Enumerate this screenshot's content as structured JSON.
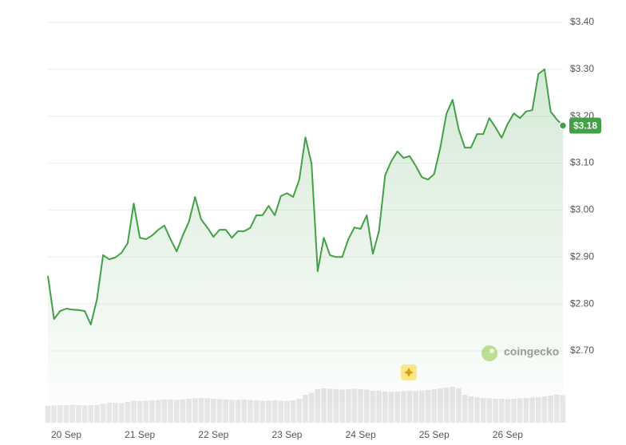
{
  "chart_data": {
    "type": "line",
    "color": "#43a047",
    "categories": [
      null,
      null,
      null,
      "20 Sep",
      null,
      null,
      null,
      null,
      null,
      null,
      null,
      null,
      null,
      null,
      null,
      "21 Sep",
      null,
      null,
      null,
      null,
      null,
      null,
      null,
      null,
      null,
      null,
      null,
      "22 Sep",
      null,
      null,
      null,
      null,
      null,
      null,
      null,
      null,
      null,
      null,
      null,
      "23 Sep",
      null,
      null,
      null,
      null,
      null,
      null,
      null,
      null,
      null,
      null,
      null,
      "24 Sep",
      null,
      null,
      null,
      null,
      null,
      null,
      null,
      null,
      null,
      null,
      null,
      "25 Sep",
      null,
      null,
      null,
      null,
      null,
      null,
      null,
      null,
      null,
      null,
      null,
      "26 Sep",
      null,
      null,
      null,
      null,
      null,
      null,
      null,
      null,
      null
    ],
    "values": [
      2.86,
      2.768,
      2.785,
      2.79,
      2.788,
      2.787,
      2.785,
      2.756,
      2.81,
      2.904,
      2.895,
      2.899,
      2.909,
      2.929,
      3.014,
      2.941,
      2.938,
      2.946,
      2.958,
      2.967,
      2.938,
      2.912,
      2.946,
      2.975,
      3.028,
      2.98,
      2.963,
      2.943,
      2.958,
      2.958,
      2.941,
      2.955,
      2.955,
      2.962,
      2.989,
      2.989,
      3.009,
      2.989,
      3.03,
      3.036,
      3.028,
      3.065,
      3.155,
      3.099,
      2.87,
      2.941,
      2.904,
      2.9,
      2.9,
      2.938,
      2.963,
      2.96,
      2.989,
      2.907,
      2.955,
      3.074,
      3.104,
      3.125,
      3.111,
      3.115,
      3.094,
      3.07,
      3.065,
      3.077,
      3.133,
      3.205,
      3.235,
      3.172,
      3.133,
      3.133,
      3.162,
      3.162,
      3.196,
      3.176,
      3.154,
      3.184,
      3.206,
      3.196,
      3.21,
      3.213,
      3.29,
      3.3,
      3.21,
      3.193,
      3.18
    ],
    "value_labels": [
      null,
      null,
      null,
      null,
      null,
      null,
      null,
      null,
      null,
      null,
      null,
      null,
      null,
      null,
      null,
      null,
      null,
      null,
      null,
      null,
      null,
      null,
      null,
      null,
      null,
      null,
      null,
      null,
      null,
      null,
      null,
      null,
      null,
      null,
      null,
      null,
      null,
      null,
      null,
      null,
      null,
      null,
      null,
      null,
      null,
      null,
      null,
      null,
      null,
      null,
      null,
      null,
      null,
      null,
      null,
      null,
      null,
      null,
      null,
      null,
      null,
      null,
      null,
      null,
      null,
      null,
      null,
      null,
      null,
      null,
      null,
      null,
      null,
      null,
      null,
      null,
      null,
      null,
      null,
      null,
      null,
      null,
      null,
      null,
      "$3.18"
    ],
    "volume": [
      42,
      43,
      44,
      44,
      45,
      44,
      43,
      44,
      45,
      48,
      50,
      50,
      49,
      52,
      55,
      54,
      55,
      56,
      57,
      58,
      58,
      57,
      58,
      60,
      61,
      62,
      61,
      60,
      59,
      58,
      57,
      57,
      58,
      57,
      56,
      55,
      55,
      56,
      55,
      54,
      56,
      60,
      70,
      75,
      84,
      86,
      85,
      84,
      83,
      84,
      85,
      84,
      83,
      80,
      80,
      78,
      77,
      78,
      79,
      80,
      79,
      80,
      82,
      84,
      86,
      88,
      90,
      86,
      70,
      66,
      64,
      62,
      61,
      60,
      60,
      59,
      60,
      61,
      62,
      63,
      64,
      66,
      68,
      70,
      69
    ],
    "volume_color": "#e6e6e6",
    "ylim": [
      2.7,
      3.4
    ],
    "yticks": [
      {
        "value": 2.7,
        "label": "$2.70"
      },
      {
        "value": 2.8,
        "label": "$2.80"
      },
      {
        "value": 2.9,
        "label": "$2.90"
      },
      {
        "value": 3.0,
        "label": "$3.00"
      },
      {
        "value": 3.1,
        "label": "$3.10"
      },
      {
        "value": 3.2,
        "label": "$3.20"
      },
      {
        "value": 3.3,
        "label": "$3.30"
      },
      {
        "value": 3.4,
        "label": "$3.40"
      }
    ],
    "grid": true,
    "watermark": "coingecko"
  }
}
